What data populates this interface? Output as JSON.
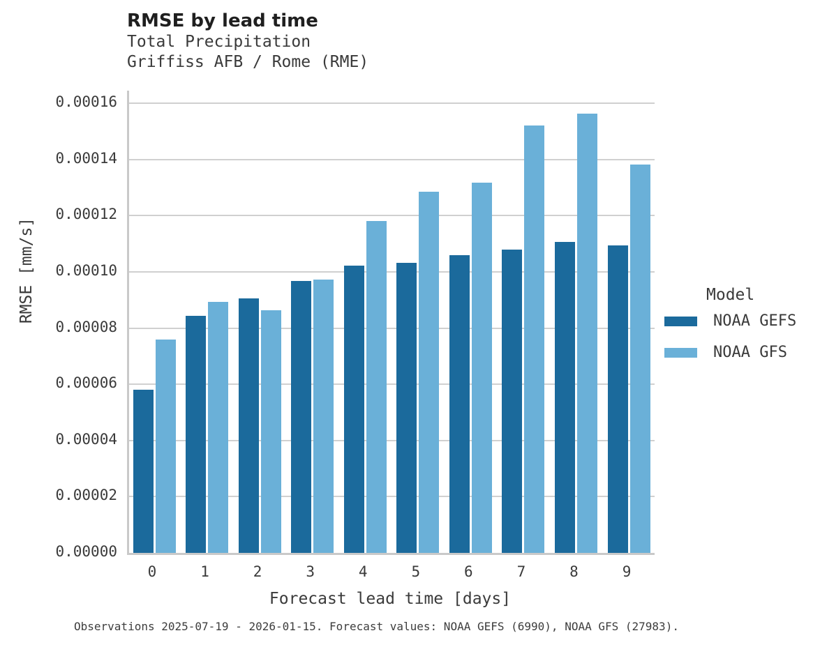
{
  "header": {
    "title": "RMSE by lead time",
    "subtitle_line1": "Total Precipitation",
    "subtitle_line2": "Griffiss AFB / Rome (RME)"
  },
  "footer": {
    "caption": "Observations 2025-07-19 - 2026-01-15. Forecast values: NOAA GEFS (6990), NOAA GFS (27983)."
  },
  "legend": {
    "title": "Model",
    "entries": [
      {
        "label": "NOAA GEFS",
        "color": "#1b6a9c"
      },
      {
        "label": "NOAA GFS",
        "color": "#6ab0d8"
      }
    ]
  },
  "chart_data": {
    "type": "bar",
    "title": "RMSE by lead time",
    "subtitle": [
      "Total Precipitation",
      "Griffiss AFB / Rome (RME)"
    ],
    "xlabel": "Forecast lead time [days]",
    "ylabel": "RMSE [mm/s]",
    "categories": [
      "0",
      "1",
      "2",
      "3",
      "4",
      "5",
      "6",
      "7",
      "8",
      "9"
    ],
    "series": [
      {
        "name": "NOAA GEFS",
        "color": "#1b6a9c",
        "values": [
          5.8e-05,
          8.43e-05,
          9.05e-05,
          9.68e-05,
          0.0001022,
          0.0001031,
          0.0001058,
          0.000108,
          0.0001107,
          0.0001093
        ]
      },
      {
        "name": "NOAA GFS",
        "color": "#6ab0d8",
        "values": [
          7.6e-05,
          8.94e-05,
          8.64e-05,
          9.72e-05,
          0.0001182,
          0.0001284,
          0.0001316,
          0.000152,
          0.0001562,
          0.0001381
        ]
      }
    ],
    "ylim": [
      0,
      0.00016
    ],
    "ytick_step": 2e-05,
    "ytick_labels": [
      "0.00000",
      "0.00002",
      "0.00004",
      "0.00006",
      "0.00008",
      "0.00010",
      "0.00012",
      "0.00014",
      "0.00016"
    ],
    "grid": true,
    "legend_title": "Model",
    "legend_position": "right",
    "footnote": "Observations 2025-07-19 - 2026-01-15. Forecast values: NOAA GEFS (6990), NOAA GFS (27983)."
  }
}
